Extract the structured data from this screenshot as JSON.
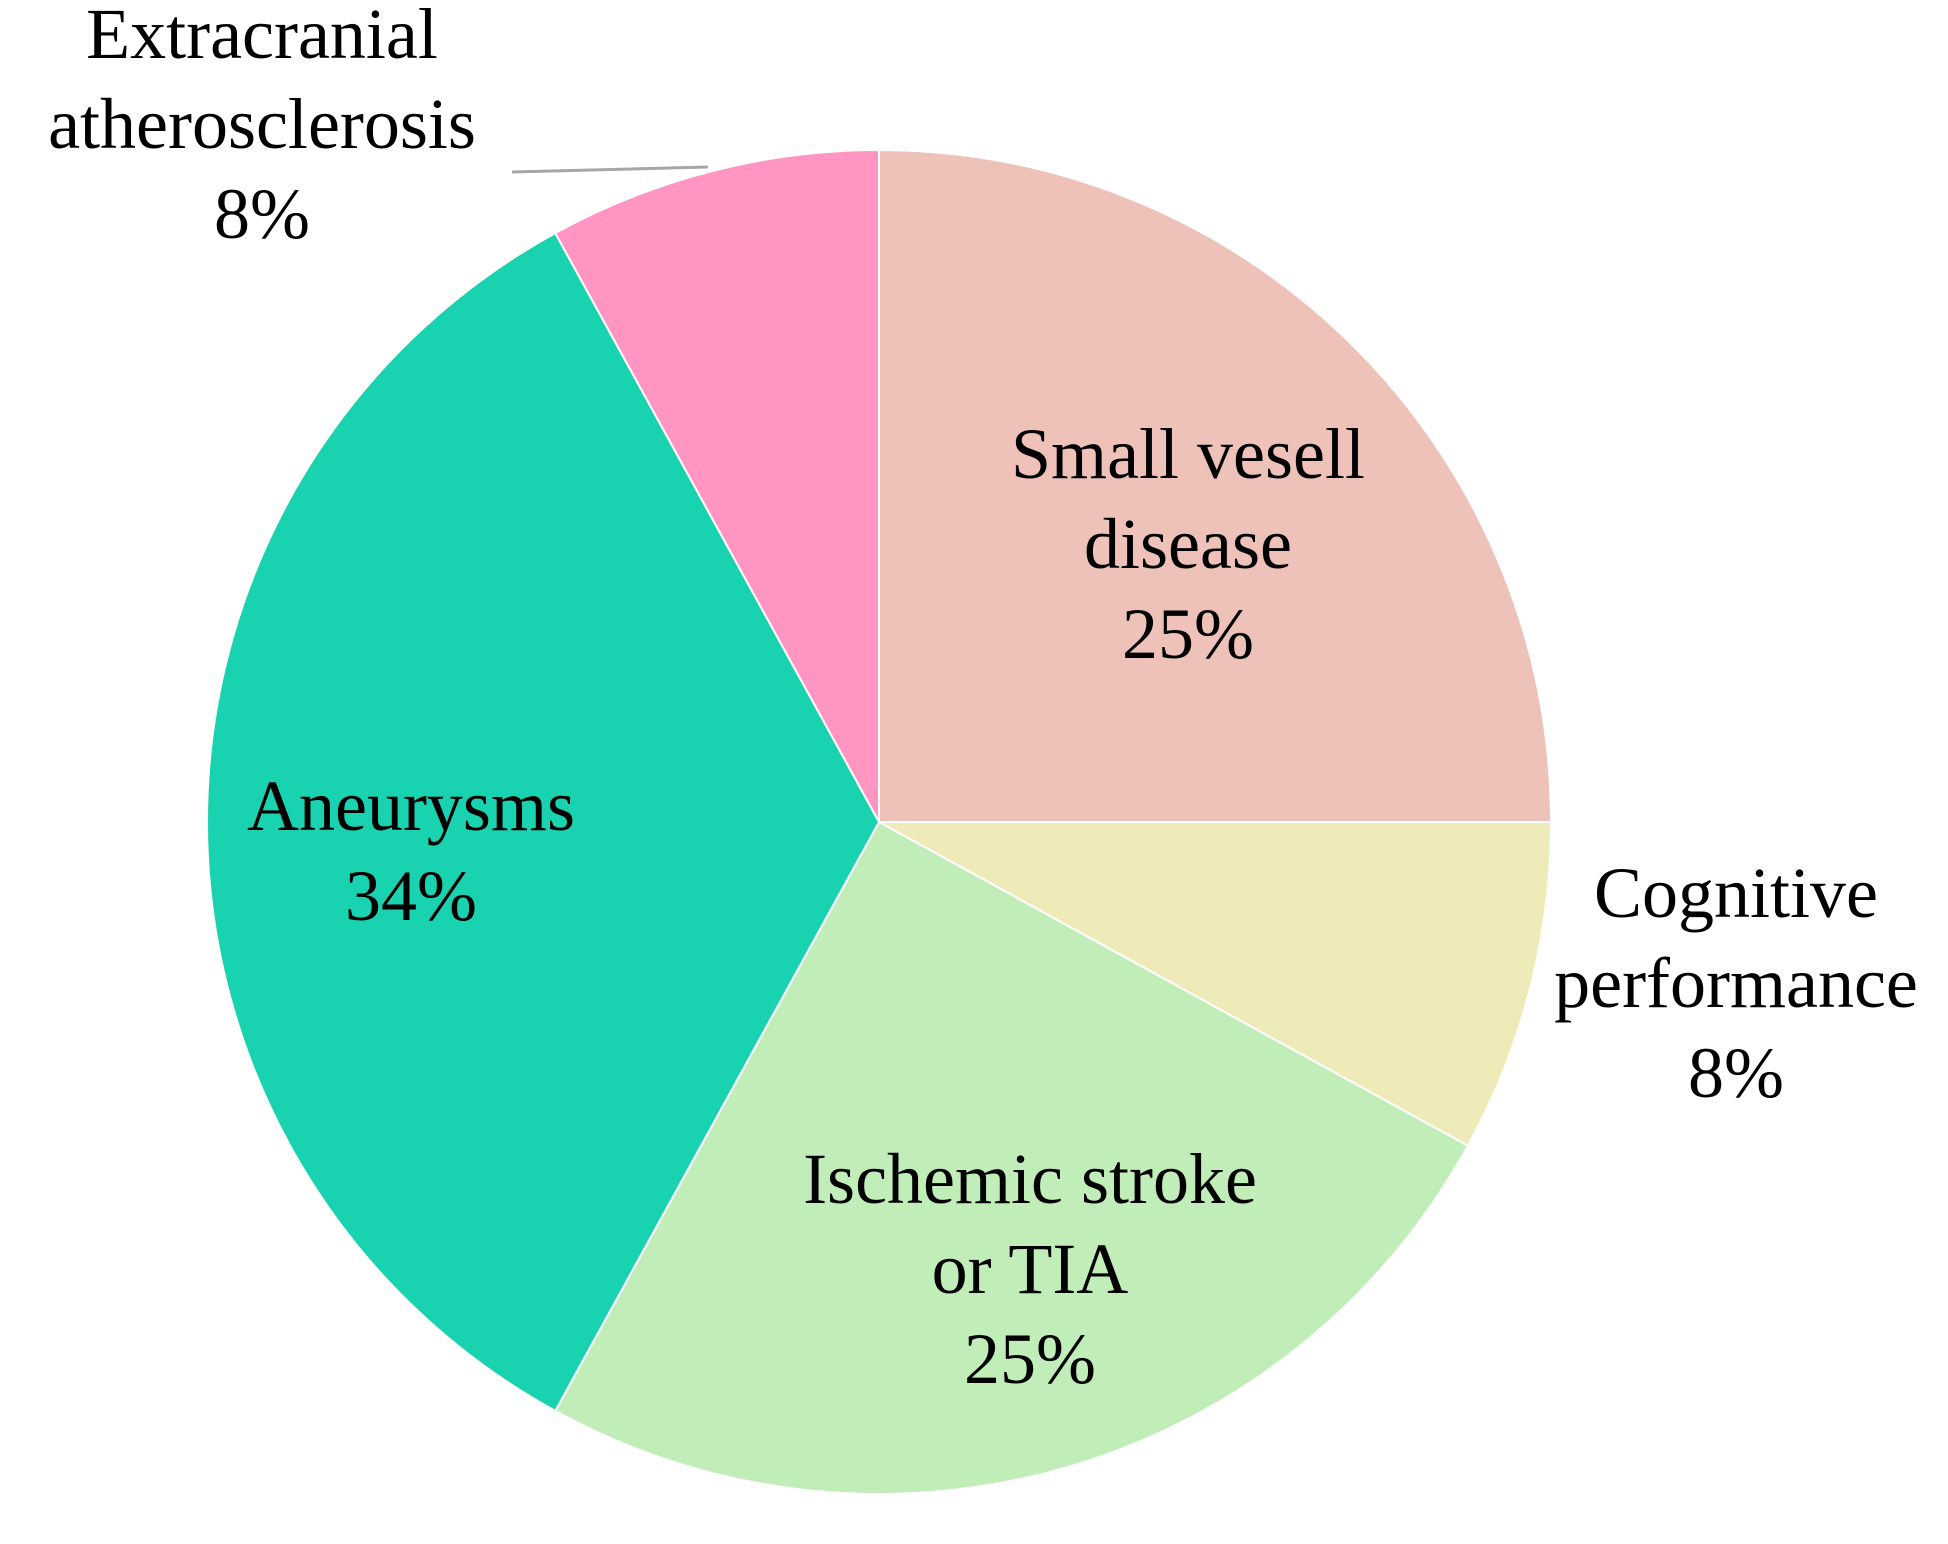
{
  "chart_data": {
    "type": "pie",
    "title": "",
    "slices": [
      {
        "label": [
          "Small vesell",
          "disease"
        ],
        "value_label": "25%",
        "value": 25,
        "color": "#EEC2B8"
      },
      {
        "label": [
          "Cognitive",
          "performance"
        ],
        "value_label": "8%",
        "value": 8,
        "color": "#EEEBB8"
      },
      {
        "label": [
          "Ischemic stroke",
          "or TIA"
        ],
        "value_label": "25%",
        "value": 25,
        "color": "#C0EDB8"
      },
      {
        "label": [
          "Aneurysms"
        ],
        "value_label": "34%",
        "value": 34,
        "color": "#19D2AF"
      },
      {
        "label": [
          "Extracranial",
          "atherosclerosis"
        ],
        "value_label": "8%",
        "value": 8,
        "color": "#FE95C3"
      }
    ],
    "start_angle": "12 o'clock",
    "direction": "clockwise",
    "legend": "none"
  }
}
